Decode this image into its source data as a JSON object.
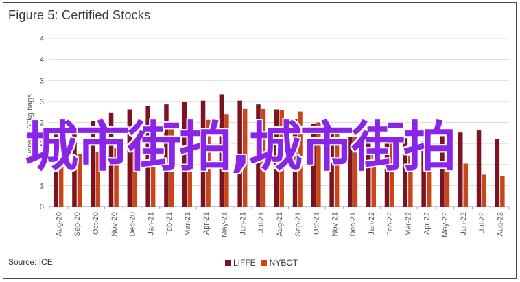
{
  "title": "Figure 5: Certified Stocks",
  "source": "Source: ICE",
  "overlay_text": "城市街拍,城市街拍",
  "colors": {
    "LIFFE": "#7b1420",
    "NYBOT": "#c9461a",
    "grid": "#d9d9d9",
    "axis": "#999999",
    "overlay": "#8a24e6"
  },
  "chart_data": {
    "type": "bar",
    "title": "Figure 5: Certified Stocks",
    "ylabel": "Millions of 60kg bags",
    "xlabel": "",
    "ylim": [
      0,
      4
    ],
    "yticks": [
      0,
      0.5,
      1,
      1.5,
      2,
      2.5,
      3,
      3.5,
      4
    ],
    "ytick_labels": [
      "0",
      "1",
      "1",
      "2",
      "2",
      "3",
      "3",
      "4",
      "4"
    ],
    "grid": true,
    "legend": "bottom",
    "categories": [
      "Aug-20",
      "Sep-20",
      "Oct-20",
      "Nov-20",
      "Dec-20",
      "Jan-21",
      "Feb-21",
      "Mar-21",
      "Apr-21",
      "May-21",
      "Jun-21",
      "Jul-21",
      "Aug-21",
      "Sep-21",
      "Oct-21",
      "Nov-21",
      "Dec-21",
      "Jan-22",
      "Feb-22",
      "Mar-22",
      "Apr-22",
      "May-22",
      "Jun-22",
      "Jul-22",
      "Aug-22"
    ],
    "series": [
      {
        "name": "LIFFE",
        "values": [
          1.84,
          1.85,
          2.04,
          2.24,
          2.31,
          2.4,
          2.43,
          2.49,
          2.52,
          2.67,
          2.52,
          2.43,
          2.31,
          2.09,
          1.97,
          1.79,
          1.66,
          1.57,
          1.54,
          1.63,
          1.56,
          1.71,
          1.76,
          1.81,
          1.61
        ]
      },
      {
        "name": "NYBOT",
        "values": [
          1.45,
          1.25,
          1.3,
          1.4,
          1.51,
          1.74,
          1.91,
          1.97,
          2.06,
          2.2,
          2.32,
          2.32,
          2.3,
          2.26,
          2.0,
          1.73,
          1.66,
          1.29,
          1.53,
          1.21,
          1.42,
          1.19,
          1.02,
          0.76,
          0.72
        ]
      }
    ]
  }
}
